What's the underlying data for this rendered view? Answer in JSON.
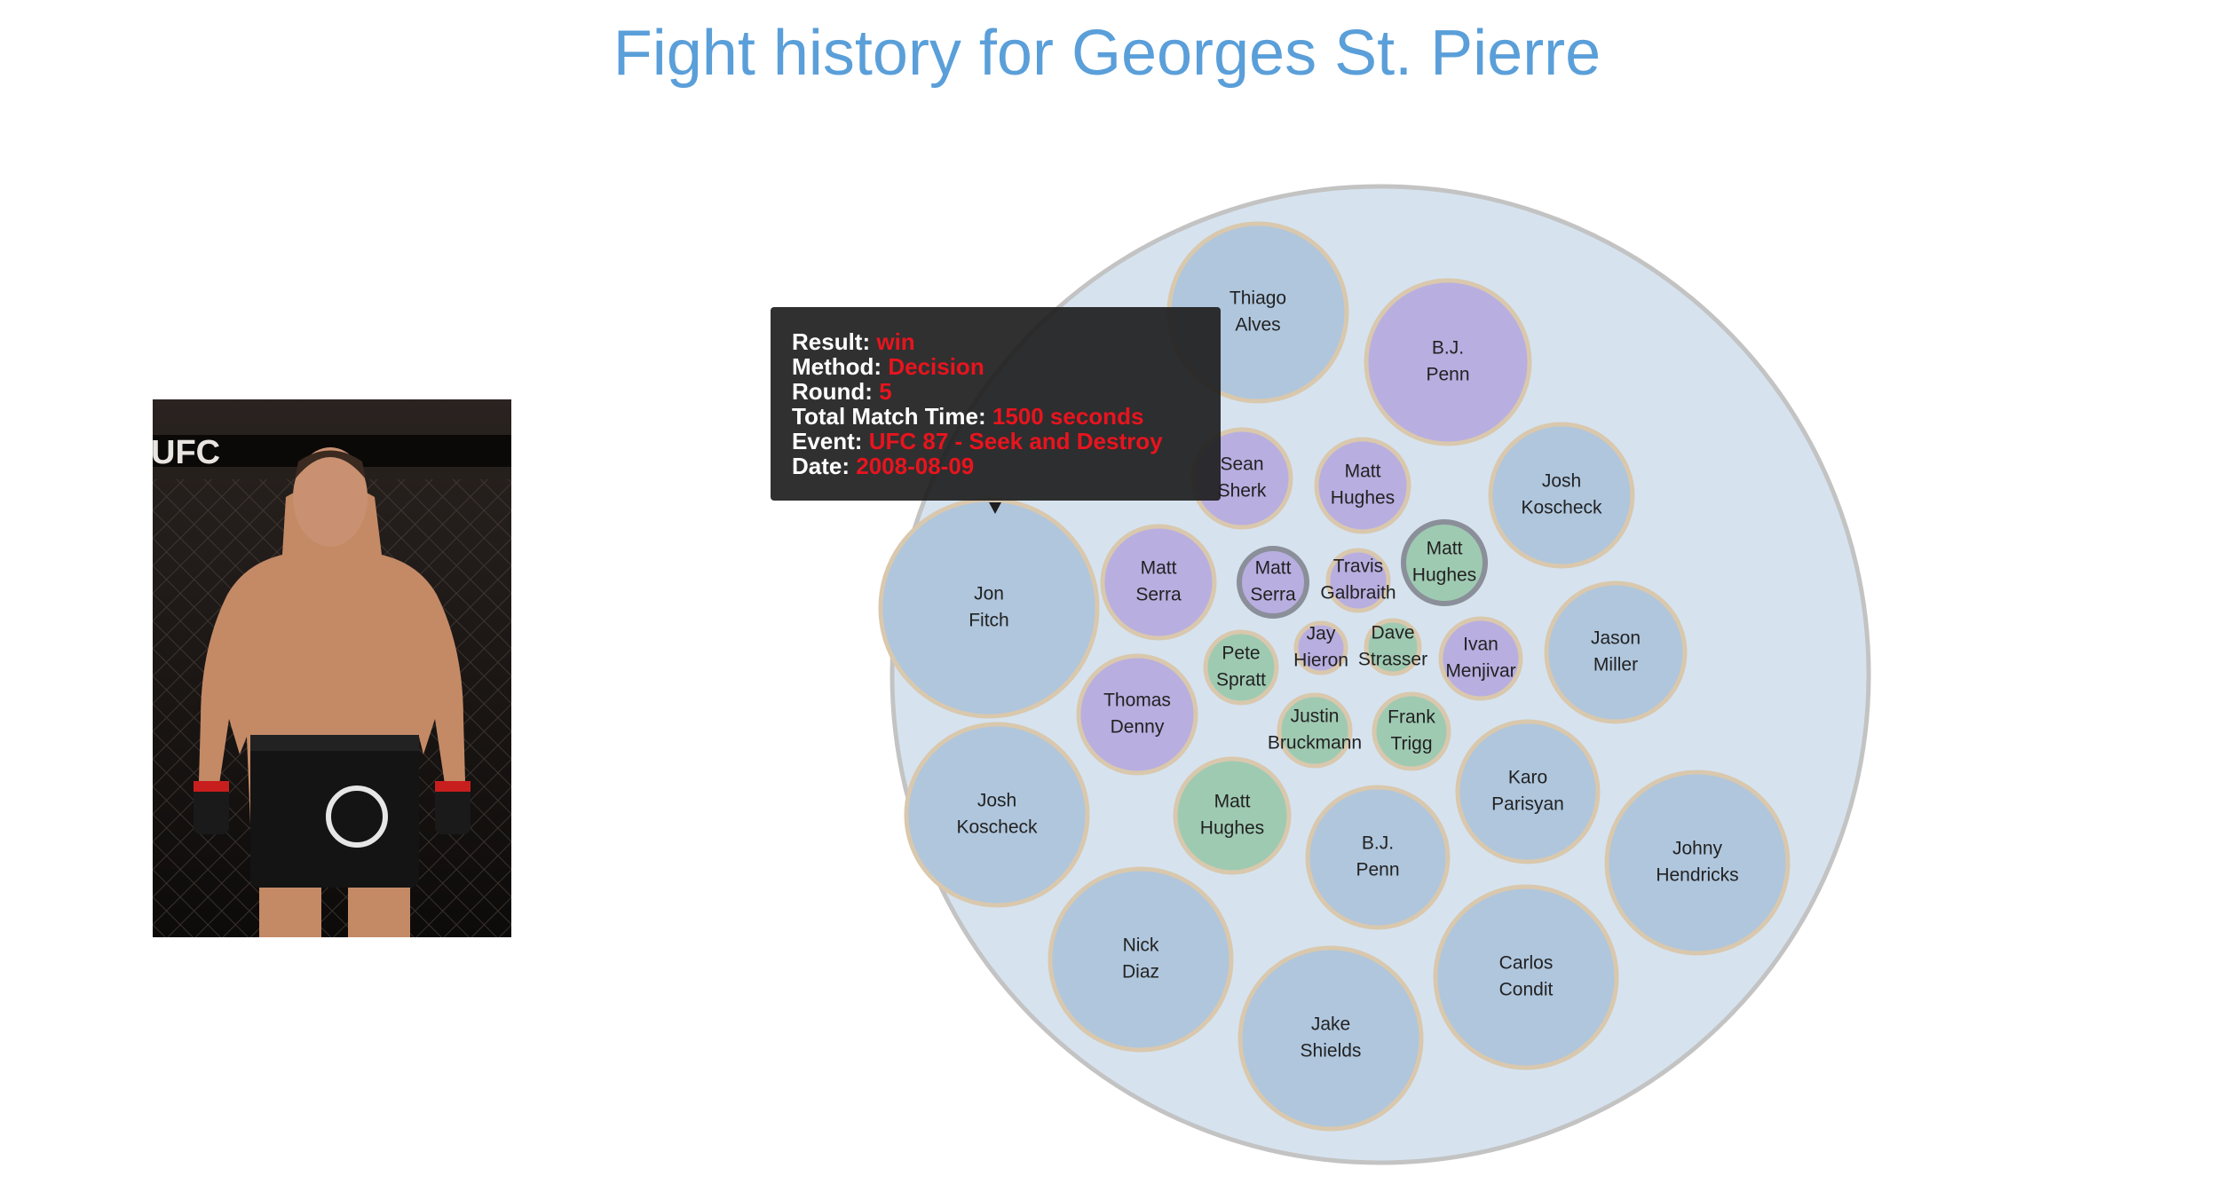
{
  "title": "Fight history for Georges St. Pierre",
  "photo": {
    "alt": "Georges St. Pierre",
    "logo_text": "UFC"
  },
  "colors": {
    "title": "#5a9fd9",
    "outer_fill": "#d6e3ef",
    "outer_stroke": "#c3c3c3",
    "win": "#afc6dd",
    "loss_purple": "#b8aee0",
    "green": "#9fcab2",
    "node_stroke": "#d9c8ad",
    "tooltip_value": "#e8141e"
  },
  "chart_data": {
    "type": "packed-bubble",
    "title": "Fight history for Georges St. Pierre",
    "nodes": [
      {
        "name": "Thiago Alves",
        "line1": "Thiago",
        "line2": "Alves",
        "group": "win"
      },
      {
        "name": "B.J. Penn",
        "line1": "B.J.",
        "line2": "Penn",
        "group": "purple"
      },
      {
        "name": "Josh Koscheck",
        "line1": "Josh",
        "line2": "Koscheck",
        "group": "win"
      },
      {
        "name": "Sean Sherk",
        "line1": "Sean",
        "line2": "Sherk",
        "group": "purple"
      },
      {
        "name": "Matt Hughes",
        "line1": "Matt",
        "line2": "Hughes",
        "group": "purple"
      },
      {
        "name": "Matt Hughes",
        "line1": "Matt",
        "line2": "Hughes",
        "group": "green"
      },
      {
        "name": "Jon Fitch",
        "line1": "Jon",
        "line2": "Fitch",
        "group": "win"
      },
      {
        "name": "Matt Serra",
        "line1": "Matt",
        "line2": "Serra",
        "group": "purple"
      },
      {
        "name": "Matt Serra",
        "line1": "Matt",
        "line2": "Serra",
        "group": "purple"
      },
      {
        "name": "Travis Galbraith",
        "line1": "Travis",
        "line2": "Galbraith",
        "group": "purple"
      },
      {
        "name": "Jay Hieron",
        "line1": "Jay",
        "line2": "Hieron",
        "group": "purple"
      },
      {
        "name": "Dave Strasser",
        "line1": "Dave",
        "line2": "Strasser",
        "group": "green"
      },
      {
        "name": "Ivan Menjivar",
        "line1": "Ivan",
        "line2": "Menjivar",
        "group": "purple"
      },
      {
        "name": "Jason Miller",
        "line1": "Jason",
        "line2": "Miller",
        "group": "win"
      },
      {
        "name": "Pete Spratt",
        "line1": "Pete",
        "line2": "Spratt",
        "group": "green"
      },
      {
        "name": "Thomas Denny",
        "line1": "Thomas",
        "line2": "Denny",
        "group": "purple"
      },
      {
        "name": "Justin Bruckmann",
        "line1": "Justin",
        "line2": "Bruckmann",
        "group": "green"
      },
      {
        "name": "Frank Trigg",
        "line1": "Frank",
        "line2": "Trigg",
        "group": "green"
      },
      {
        "name": "Josh Koscheck",
        "line1": "Josh",
        "line2": "Koscheck",
        "group": "win"
      },
      {
        "name": "Matt Hughes",
        "line1": "Matt",
        "line2": "Hughes",
        "group": "green"
      },
      {
        "name": "Karo Parisyan",
        "line1": "Karo",
        "line2": "Parisyan",
        "group": "win"
      },
      {
        "name": "B.J. Penn",
        "line1": "B.J.",
        "line2": "Penn",
        "group": "win"
      },
      {
        "name": "Johny Hendricks",
        "line1": "Johny",
        "line2": "Hendricks",
        "group": "win"
      },
      {
        "name": "Nick Diaz",
        "line1": "Nick",
        "line2": "Diaz",
        "group": "win"
      },
      {
        "name": "Carlos Condit",
        "line1": "Carlos",
        "line2": "Condit",
        "group": "win"
      },
      {
        "name": "Jake Shields",
        "line1": "Jake",
        "line2": "Shields",
        "group": "win"
      }
    ]
  },
  "tooltip": {
    "rows": [
      {
        "label": "Result:",
        "value": "win"
      },
      {
        "label": "Method:",
        "value": "Decision"
      },
      {
        "label": "Round:",
        "value": "5"
      },
      {
        "label": "Total Match Time:",
        "value": "1500 seconds"
      },
      {
        "label": "Event:",
        "value": "UFC 87 - Seek and Destroy"
      },
      {
        "label": "Date:",
        "value": "2008-08-09"
      }
    ]
  }
}
